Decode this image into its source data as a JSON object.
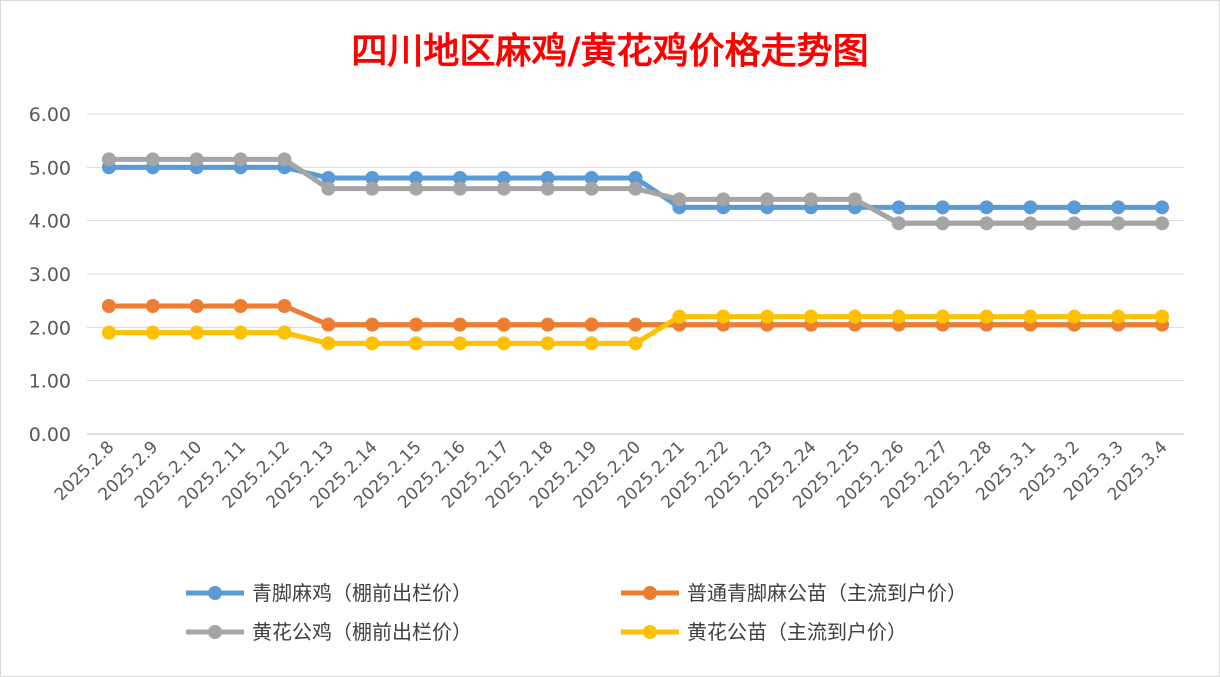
{
  "chart_data": {
    "type": "line",
    "title": "四川地区麻鸡/黄花鸡价格走势图",
    "xlabel": "",
    "ylabel": "",
    "ylim": [
      0,
      6
    ],
    "yticks": [
      "0.00",
      "1.00",
      "2.00",
      "3.00",
      "4.00",
      "5.00",
      "6.00"
    ],
    "grid": true,
    "legend_position": "bottom",
    "categories": [
      "2025.2.8",
      "2025.2.9",
      "2025.2.10",
      "2025.2.11",
      "2025.2.12",
      "2025.2.13",
      "2025.2.14",
      "2025.2.15",
      "2025.2.16",
      "2025.2.17",
      "2025.2.18",
      "2025.2.19",
      "2025.2.20",
      "2025.2.21",
      "2025.2.22",
      "2025.2.23",
      "2025.2.24",
      "2025.2.25",
      "2025.2.26",
      "2025.2.27",
      "2025.2.28",
      "2025.3.1",
      "2025.3.2",
      "2025.3.3",
      "2025.3.4"
    ],
    "series": [
      {
        "name": "青脚麻鸡（棚前出栏价）",
        "color": "#5b9bd5",
        "values": [
          5.0,
          5.0,
          5.0,
          5.0,
          5.0,
          4.8,
          4.8,
          4.8,
          4.8,
          4.8,
          4.8,
          4.8,
          4.8,
          4.25,
          4.25,
          4.25,
          4.25,
          4.25,
          4.25,
          4.25,
          4.25,
          4.25,
          4.25,
          4.25,
          4.25
        ]
      },
      {
        "name": "普通青脚麻公苗（主流到户价）",
        "color": "#ed7d31",
        "values": [
          2.4,
          2.4,
          2.4,
          2.4,
          2.4,
          2.05,
          2.05,
          2.05,
          2.05,
          2.05,
          2.05,
          2.05,
          2.05,
          2.05,
          2.05,
          2.05,
          2.05,
          2.05,
          2.05,
          2.05,
          2.05,
          2.05,
          2.05,
          2.05,
          2.05
        ]
      },
      {
        "name": "黄花公鸡（棚前出栏价）",
        "color": "#a5a5a5",
        "values": [
          5.15,
          5.15,
          5.15,
          5.15,
          5.15,
          4.6,
          4.6,
          4.6,
          4.6,
          4.6,
          4.6,
          4.6,
          4.6,
          4.4,
          4.4,
          4.4,
          4.4,
          4.4,
          3.95,
          3.95,
          3.95,
          3.95,
          3.95,
          3.95,
          3.95
        ]
      },
      {
        "name": "黄花公苗（主流到户价）",
        "color": "#ffc000",
        "values": [
          1.9,
          1.9,
          1.9,
          1.9,
          1.9,
          1.7,
          1.7,
          1.7,
          1.7,
          1.7,
          1.7,
          1.7,
          1.7,
          2.2,
          2.2,
          2.2,
          2.2,
          2.2,
          2.2,
          2.2,
          2.2,
          2.2,
          2.2,
          2.2,
          2.2
        ]
      }
    ]
  }
}
